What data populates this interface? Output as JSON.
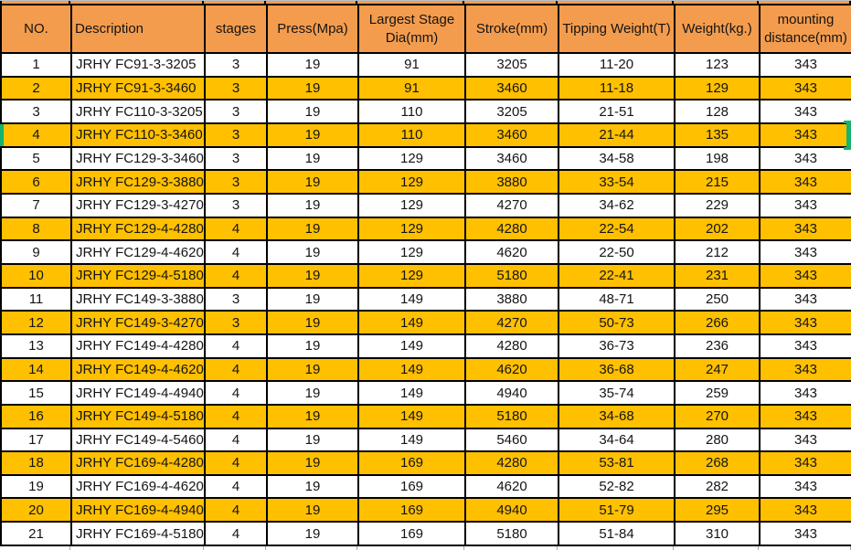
{
  "sheet": {
    "colors": {
      "header_bg": "#F49C4D",
      "highlight_row_bg": "#FFC000",
      "normal_row_bg": "#FFFFFF",
      "grid_border": "#000000",
      "selection_green": "#17B26E"
    }
  },
  "table": {
    "columns": [
      "NO.",
      "Description",
      "stages",
      "Press(Mpa)",
      "Largest Stage Dia(mm)",
      "Stroke(mm)",
      "Tipping Weight(T)",
      "Weight(kg.)",
      "mounting distance(mm)"
    ],
    "rows": [
      [
        "1",
        "JRHY FC91-3-3205",
        "3",
        "19",
        "91",
        "3205",
        "11-20",
        "123",
        "343"
      ],
      [
        "2",
        "JRHY FC91-3-3460",
        "3",
        "19",
        "91",
        "3460",
        "11-18",
        "129",
        "343"
      ],
      [
        "3",
        "JRHY FC110-3-3205",
        "3",
        "19",
        "110",
        "3205",
        "21-51",
        "128",
        "343"
      ],
      [
        "4",
        "JRHY FC110-3-3460",
        "3",
        "19",
        "110",
        "3460",
        "21-44",
        "135",
        "343"
      ],
      [
        "5",
        "JRHY FC129-3-3460",
        "3",
        "19",
        "129",
        "3460",
        "34-58",
        "198",
        "343"
      ],
      [
        "6",
        "JRHY FC129-3-3880",
        "3",
        "19",
        "129",
        "3880",
        "33-54",
        "215",
        "343"
      ],
      [
        "7",
        "JRHY FC129-3-4270",
        "3",
        "19",
        "129",
        "4270",
        "34-62",
        "229",
        "343"
      ],
      [
        "8",
        "JRHY FC129-4-4280",
        "4",
        "19",
        "129",
        "4280",
        "22-54",
        "202",
        "343"
      ],
      [
        "9",
        "JRHY FC129-4-4620",
        "4",
        "19",
        "129",
        "4620",
        "22-50",
        "212",
        "343"
      ],
      [
        "10",
        "JRHY FC129-4-5180",
        "4",
        "19",
        "129",
        "5180",
        "22-41",
        "231",
        "343"
      ],
      [
        "11",
        "JRHY FC149-3-3880",
        "3",
        "19",
        "149",
        "3880",
        "48-71",
        "250",
        "343"
      ],
      [
        "12",
        "JRHY FC149-3-4270",
        "3",
        "19",
        "149",
        "4270",
        "50-73",
        "266",
        "343"
      ],
      [
        "13",
        "JRHY FC149-4-4280",
        "4",
        "19",
        "149",
        "4280",
        "36-73",
        "236",
        "343"
      ],
      [
        "14",
        "JRHY FC149-4-4620",
        "4",
        "19",
        "149",
        "4620",
        "36-68",
        "247",
        "343"
      ],
      [
        "15",
        "JRHY FC149-4-4940",
        "4",
        "19",
        "149",
        "4940",
        "35-74",
        "259",
        "343"
      ],
      [
        "16",
        "JRHY FC149-4-5180",
        "4",
        "19",
        "149",
        "5180",
        "34-68",
        "270",
        "343"
      ],
      [
        "17",
        "JRHY FC149-4-5460",
        "4",
        "19",
        "149",
        "5460",
        "34-64",
        "280",
        "343"
      ],
      [
        "18",
        "JRHY FC169-4-4280",
        "4",
        "19",
        "169",
        "4280",
        "53-81",
        "268",
        "343"
      ],
      [
        "19",
        "JRHY FC169-4-4620",
        "4",
        "19",
        "169",
        "4620",
        "52-82",
        "282",
        "343"
      ],
      [
        "20",
        "JRHY FC169-4-4940",
        "4",
        "19",
        "169",
        "4940",
        "51-79",
        "295",
        "343"
      ],
      [
        "21",
        "JRHY FC169-4-5180",
        "4",
        "19",
        "169",
        "5180",
        "51-84",
        "310",
        "343"
      ]
    ],
    "highlighted_row_numbers": [
      2,
      4,
      6,
      8,
      10,
      12,
      14,
      16,
      18,
      20
    ],
    "selected_row_number": 4
  }
}
